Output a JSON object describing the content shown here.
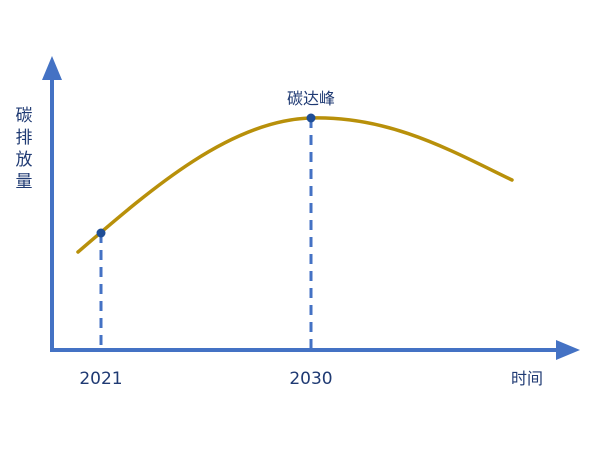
{
  "diagram": {
    "y_axis_label": "碳排放量",
    "x_axis_label": "时间",
    "peak_label": "碳达峰",
    "ticks": [
      {
        "label": "2021"
      },
      {
        "label": "2030"
      }
    ]
  },
  "colors": {
    "axis": "#4472c4",
    "curve": "#b8900a",
    "marker": "#1f4e96",
    "dash": "#4472c4",
    "text": "#1f3a73"
  }
}
